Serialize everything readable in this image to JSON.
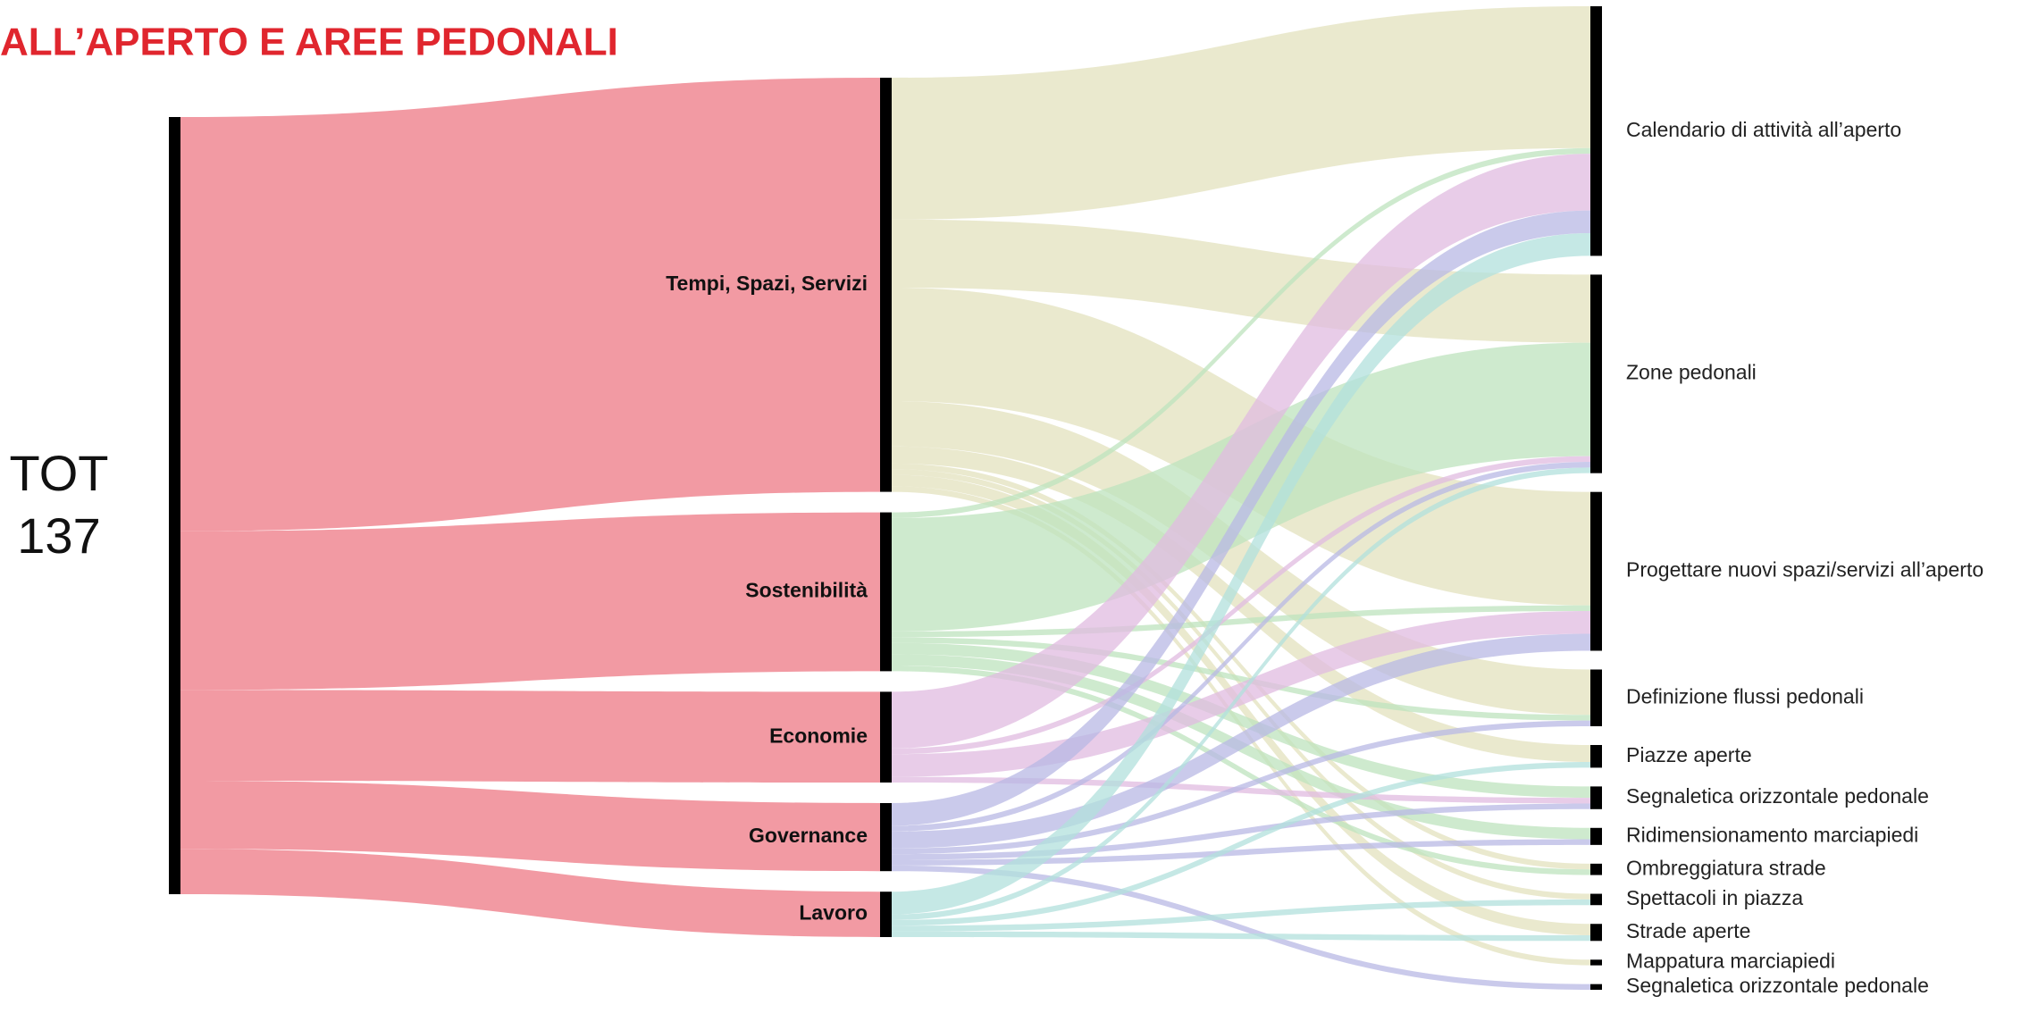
{
  "chart_data": {
    "type": "sankey",
    "title": "ALL’APERTO E AREE PEDONALI",
    "root": {
      "label": "TOT",
      "value": 137,
      "color": "#f29aa3"
    },
    "stages": [
      {
        "name": "Tempi, Spazi, Servizi",
        "value": 73,
        "color": "#e3e2bd",
        "links": [
          {
            "target": 0,
            "value": 25
          },
          {
            "target": 1,
            "value": 12
          },
          {
            "target": 2,
            "value": 20
          },
          {
            "target": 3,
            "value": 8
          },
          {
            "target": 4,
            "value": 3
          },
          {
            "target": 7,
            "value": 1
          },
          {
            "target": 8,
            "value": 1
          },
          {
            "target": 9,
            "value": 2
          },
          {
            "target": 10,
            "value": 1
          }
        ]
      },
      {
        "name": "Sostenibilità",
        "value": 28,
        "color": "#bde3be",
        "links": [
          {
            "target": 0,
            "value": 1
          },
          {
            "target": 1,
            "value": 20
          },
          {
            "target": 2,
            "value": 1
          },
          {
            "target": 3,
            "value": 1
          },
          {
            "target": 5,
            "value": 2
          },
          {
            "target": 6,
            "value": 2
          },
          {
            "target": 7,
            "value": 1
          }
        ]
      },
      {
        "name": "Economie",
        "value": 16,
        "color": "#e0bbe0",
        "links": [
          {
            "target": 0,
            "value": 10
          },
          {
            "target": 1,
            "value": 1
          },
          {
            "target": 2,
            "value": 4
          },
          {
            "target": 5,
            "value": 1
          }
        ]
      },
      {
        "name": "Governance",
        "value": 12,
        "color": "#b8b8e4",
        "links": [
          {
            "target": 0,
            "value": 4
          },
          {
            "target": 1,
            "value": 1
          },
          {
            "target": 2,
            "value": 3
          },
          {
            "target": 3,
            "value": 1
          },
          {
            "target": 5,
            "value": 1
          },
          {
            "target": 6,
            "value": 1
          },
          {
            "target": 11,
            "value": 1
          }
        ]
      },
      {
        "name": "Lavoro",
        "value": 8,
        "color": "#b1e0dc",
        "links": [
          {
            "target": 0,
            "value": 4
          },
          {
            "target": 1,
            "value": 1
          },
          {
            "target": 4,
            "value": 1
          },
          {
            "target": 8,
            "value": 1
          },
          {
            "target": 9,
            "value": 1
          }
        ]
      }
    ],
    "targets": [
      "Calendario di attività all’aperto",
      "Zone pedonali",
      "Progettare nuovi spazi/servizi all’aperto",
      "Definizione flussi pedonali",
      "Piazze aperte",
      "Segnaletica orizzontale pedonale",
      "Ridimensionamento marciapiedi",
      "Ombreggiatura strade",
      "Spettacoli in piazza",
      "Strade aperte",
      "Mappatura marciapiedi",
      "Segnaletica orizzontale pedonale"
    ],
    "title_color": "#e0262e",
    "node_color": "#000000"
  }
}
